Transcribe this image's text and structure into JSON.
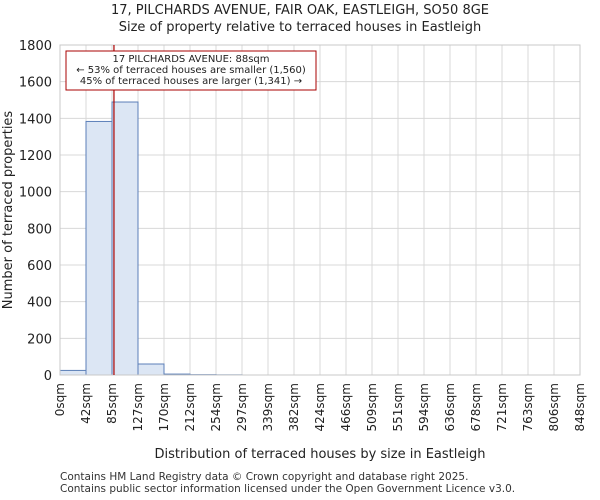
{
  "chart_data": {
    "type": "histogram",
    "title": "17, PILCHARDS AVENUE, FAIR OAK, EASTLEIGH, SO50 8GE",
    "subtitle": "Size of property relative to terraced houses in Eastleigh",
    "xlabel": "Distribution of terraced houses by size in Eastleigh",
    "ylabel": "Number of terraced properties",
    "ylim": [
      0,
      1800
    ],
    "yticks": [
      0,
      200,
      400,
      600,
      800,
      1000,
      1200,
      1400,
      1600,
      1800
    ],
    "categories": [
      "0sqm",
      "42sqm",
      "85sqm",
      "127sqm",
      "170sqm",
      "212sqm",
      "254sqm",
      "297sqm",
      "339sqm",
      "382sqm",
      "424sqm",
      "466sqm",
      "509sqm",
      "551sqm",
      "594sqm",
      "636sqm",
      "678sqm",
      "721sqm",
      "763sqm",
      "806sqm",
      "848sqm"
    ],
    "values": [
      25,
      1383,
      1489,
      60,
      5,
      2,
      1,
      0,
      0,
      0,
      0,
      0,
      0,
      0,
      0,
      0,
      0,
      0,
      0,
      0
    ],
    "bar_fill": "#dce6f4",
    "bar_stroke": "#5b7fb8",
    "marker": {
      "value_sqm": 88,
      "color": "#aa0000",
      "annotation": [
        "17 PILCHARDS AVENUE: 88sqm",
        "← 53% of terraced houses are smaller (1,560)",
        "45% of terraced houses are larger (1,341) →"
      ]
    }
  },
  "footer": {
    "line1": "Contains HM Land Registry data © Crown copyright and database right 2025.",
    "line2": "Contains public sector information licensed under the Open Government Licence v3.0."
  }
}
